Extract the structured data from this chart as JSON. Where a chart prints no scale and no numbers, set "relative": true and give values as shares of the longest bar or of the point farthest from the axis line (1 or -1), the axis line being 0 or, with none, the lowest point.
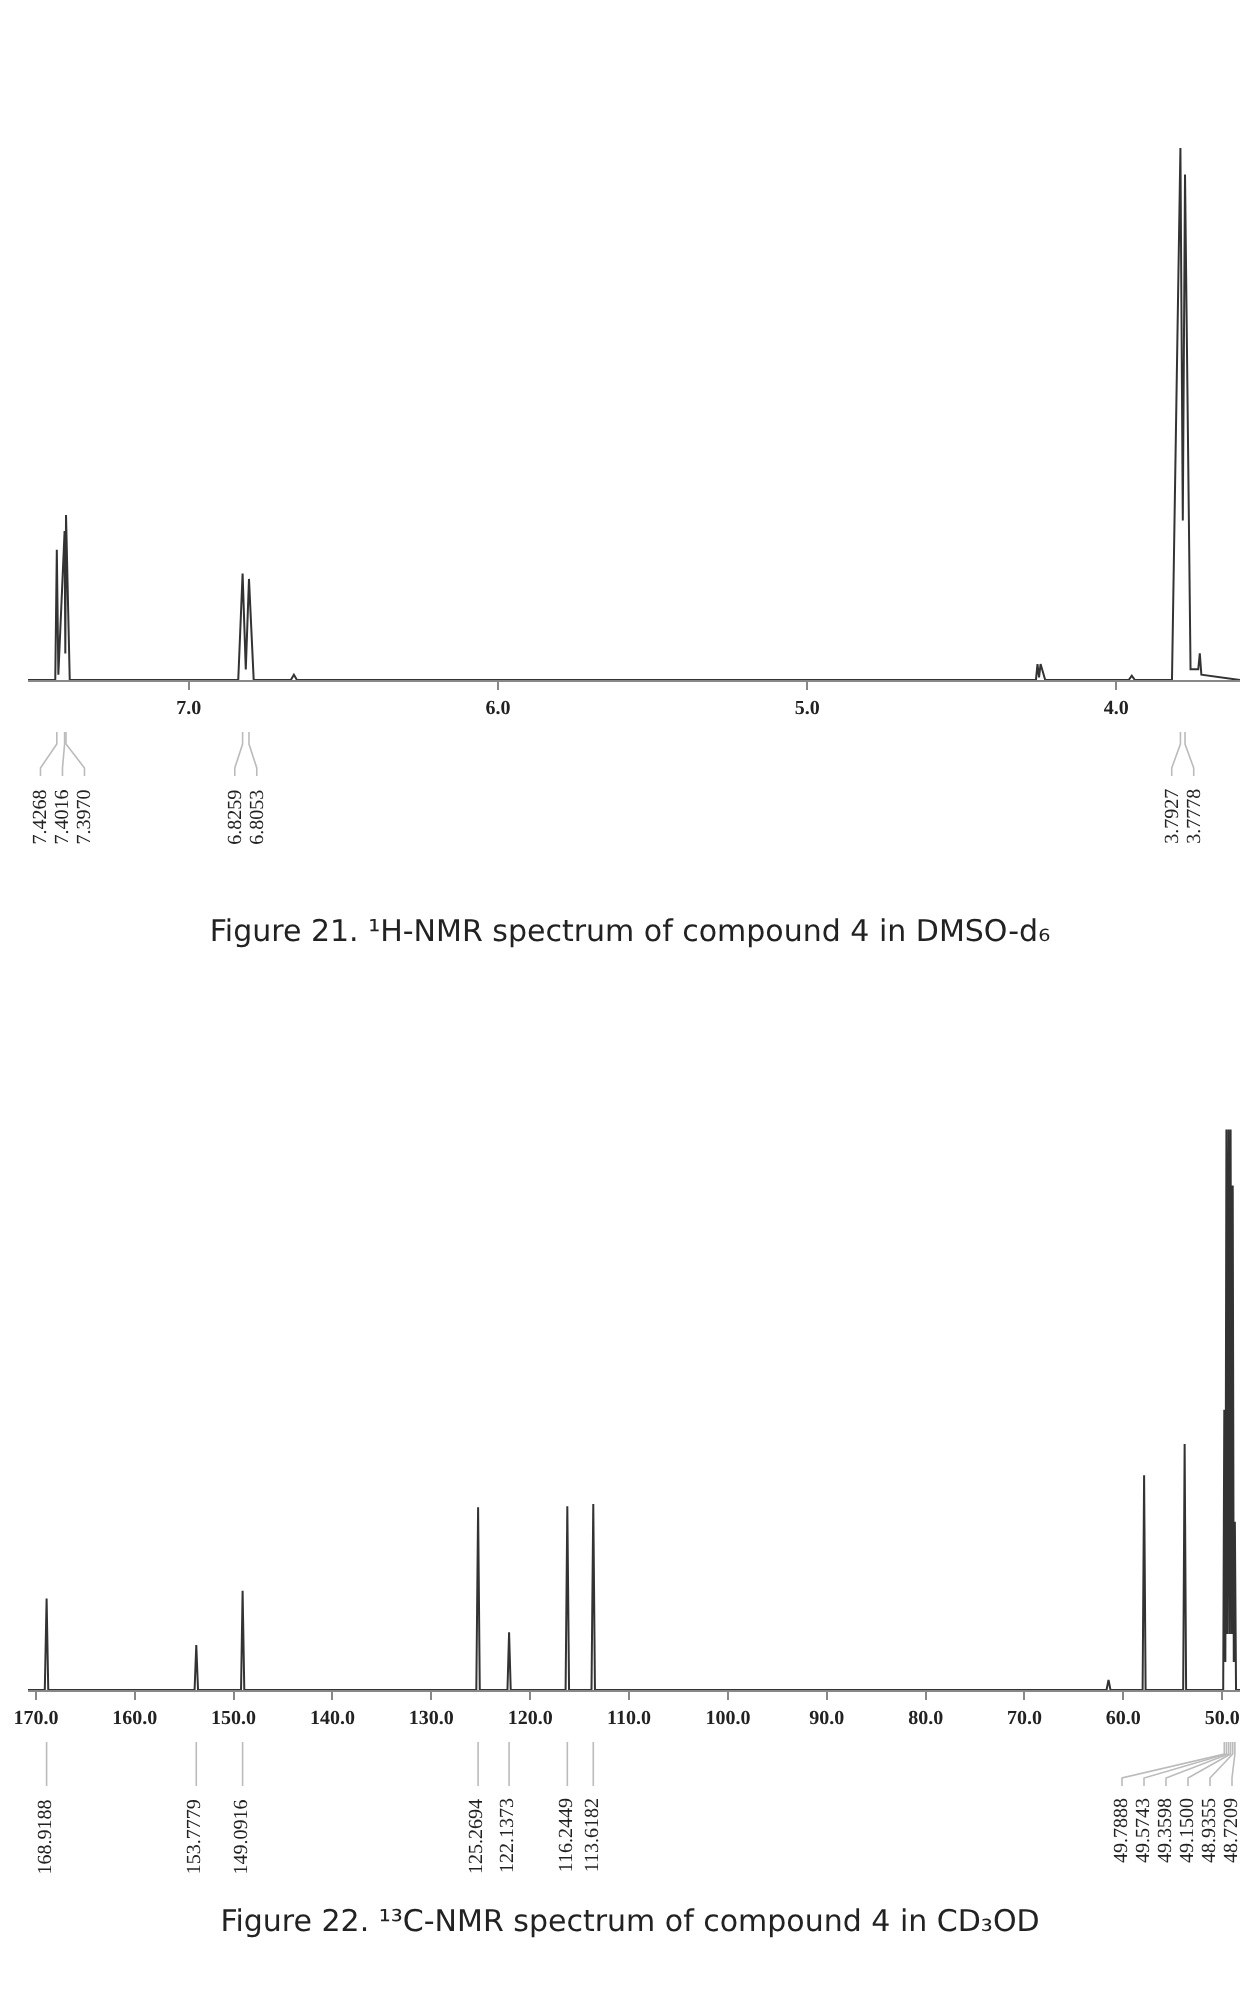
{
  "chart_data": [
    {
      "type": "line",
      "title": "Figure 21. ¹H-NMR spectrum of compound 4 in DMSO-d₆",
      "relative": true,
      "grid": false,
      "tick_labels": "x",
      "marker": "none",
      "line_style": "solid",
      "xlim": [
        7.52,
        3.6
      ],
      "xticks": [
        {
          "value": 7,
          "label": "7.0"
        },
        {
          "value": 6,
          "label": "6.0"
        },
        {
          "value": 5,
          "label": "5.0"
        },
        {
          "value": 4,
          "label": "4.0"
        }
      ],
      "series": [
        {
          "color": "#333333",
          "x": [
            7.52,
            7.45,
            7.4318,
            7.4268,
            7.4218,
            7.4016,
            7.3993,
            7.397,
            7.385,
            7.1,
            6.84,
            6.8259,
            6.8156,
            6.8053,
            6.79,
            6.67,
            6.66,
            6.65,
            6.5,
            5.0,
            4.26,
            4.255,
            4.25,
            4.245,
            4.23,
            3.96,
            3.95,
            3.94,
            3.82,
            3.7927,
            3.785,
            3.7778,
            3.76,
            3.735,
            3.73,
            3.725,
            3.6
          ],
          "values": [
            0,
            0,
            0,
            0.245,
            0.01,
            0.28,
            0.05,
            0.31,
            0,
            0,
            0,
            0.2,
            0.02,
            0.19,
            0,
            0,
            0.01,
            0,
            0,
            0,
            0,
            0.03,
            0.005,
            0.03,
            0,
            0,
            0.008,
            0,
            0,
            1.0,
            0.3,
            0.95,
            0.02,
            0.02,
            0.05,
            0.01,
            0
          ]
        }
      ],
      "annotations": [
        {
          "text": "7.4268",
          "x": 7.4268
        },
        {
          "text": "7.4016",
          "x": 7.4016
        },
        {
          "text": "7.3970",
          "x": 7.397
        },
        {
          "text": "6.8259",
          "x": 6.8259
        },
        {
          "text": "6.8053",
          "x": 6.8053
        },
        {
          "text": "3.7927",
          "x": 3.7927
        },
        {
          "text": "3.7778",
          "x": 3.7778
        }
      ]
    },
    {
      "type": "line",
      "title": "Figure 22. ¹³C-NMR spectrum of compound 4 in CD₃OD",
      "relative": true,
      "grid": false,
      "tick_labels": "x",
      "marker": "none",
      "line_style": "solid",
      "xlim": [
        170.8,
        48.2
      ],
      "xticks": [
        {
          "value": 170,
          "label": "170.0"
        },
        {
          "value": 160,
          "label": "160.0"
        },
        {
          "value": 150,
          "label": "150.0"
        },
        {
          "value": 140,
          "label": "140.0"
        },
        {
          "value": 130,
          "label": "130.0"
        },
        {
          "value": 120,
          "label": "120.0"
        },
        {
          "value": 110,
          "label": "110.0"
        },
        {
          "value": 100,
          "label": "100.0"
        },
        {
          "value": 90,
          "label": "90.0"
        },
        {
          "value": 80,
          "label": "80.0"
        },
        {
          "value": 70,
          "label": "70.0"
        },
        {
          "value": 60,
          "label": "60.0"
        },
        {
          "value": 50,
          "label": "50.0"
        }
      ],
      "series": [
        {
          "color": "#333333",
          "x": [
            170.8,
            169.1,
            168.9188,
            168.75,
            153.95,
            153.7779,
            153.6,
            149.25,
            149.0916,
            148.92,
            125.45,
            125.2694,
            125.1,
            122.3,
            122.1373,
            121.97,
            116.42,
            116.2449,
            116.07,
            113.8,
            113.6182,
            113.45,
            61.7,
            61.5,
            61.3,
            58.05,
            57.9,
            57.75,
            53.95,
            53.8,
            53.65,
            49.9,
            49.7888,
            49.68,
            49.5743,
            49.47,
            49.3598,
            49.25,
            49.15,
            49.04,
            48.9355,
            48.83,
            48.7209,
            48.6,
            48.2
          ],
          "values": [
            0,
            0,
            0.163,
            0,
            0,
            0.08,
            0,
            0,
            0.177,
            0,
            0,
            0.326,
            0,
            0,
            0.103,
            0,
            0,
            0.328,
            0,
            0,
            0.332,
            0,
            0,
            0.018,
            0,
            0,
            0.383,
            0,
            0,
            0.439,
            0,
            0,
            0.5,
            0.05,
            1.0,
            0.1,
            1.0,
            0.1,
            1.0,
            0.1,
            0.9,
            0.05,
            0.3,
            0,
            0
          ]
        }
      ],
      "annotations": [
        {
          "text": "168.9188",
          "x": 168.9188
        },
        {
          "text": "153.7779",
          "x": 153.7779
        },
        {
          "text": "149.0916",
          "x": 149.0916
        },
        {
          "text": "125.2694",
          "x": 125.2694
        },
        {
          "text": "122.1373",
          "x": 122.1373
        },
        {
          "text": "116.2449",
          "x": 116.2449
        },
        {
          "text": "113.6182",
          "x": 113.6182
        },
        {
          "text": "49.7888",
          "x": 49.7888
        },
        {
          "text": "49.5743",
          "x": 49.5743
        },
        {
          "text": "49.3598",
          "x": 49.3598
        },
        {
          "text": "49.1500",
          "x": 49.15
        },
        {
          "text": "48.9355",
          "x": 48.9355
        },
        {
          "text": "48.7209",
          "x": 48.7209
        }
      ]
    }
  ]
}
